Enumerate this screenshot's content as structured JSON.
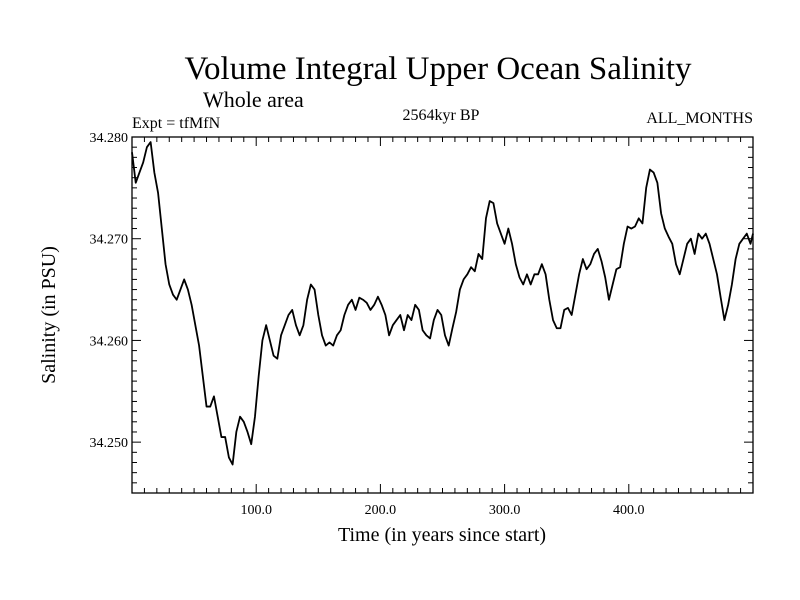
{
  "chart_data": {
    "type": "line",
    "title": "Volume Integral Upper Ocean Salinity",
    "subtitle": "Whole area",
    "expt_label": "Expt = tfMfN",
    "period_label": "2564kyr BP",
    "months_label": "ALL_MONTHS",
    "xlabel": "Time (in years since start)",
    "ylabel": "Salinity (in PSU)",
    "xlim": [
      0,
      500
    ],
    "ylim": [
      34.245,
      34.28
    ],
    "x_ticks": [
      {
        "value": 100,
        "label": "100.0"
      },
      {
        "value": 200,
        "label": "200.0"
      },
      {
        "value": 300,
        "label": "300.0"
      },
      {
        "value": 400,
        "label": "400.0"
      }
    ],
    "y_ticks": [
      {
        "value": 34.25,
        "label": "34.250"
      },
      {
        "value": 34.26,
        "label": "34.260"
      },
      {
        "value": 34.27,
        "label": "34.270"
      },
      {
        "value": 34.28,
        "label": "34.280"
      }
    ],
    "grid": false,
    "series": [
      {
        "name": "salinity",
        "x": [
          0,
          3,
          6,
          9,
          12,
          15,
          18,
          21,
          24,
          27,
          30,
          33,
          36,
          39,
          42,
          45,
          48,
          51,
          54,
          57,
          60,
          63,
          66,
          69,
          72,
          75,
          78,
          81,
          84,
          87,
          90,
          93,
          96,
          99,
          102,
          105,
          108,
          111,
          114,
          117,
          120,
          123,
          126,
          129,
          132,
          135,
          138,
          141,
          144,
          147,
          150,
          153,
          156,
          159,
          162,
          165,
          168,
          171,
          174,
          177,
          180,
          183,
          186,
          189,
          192,
          195,
          198,
          201,
          204,
          207,
          210,
          213,
          216,
          219,
          222,
          225,
          228,
          231,
          234,
          237,
          240,
          243,
          246,
          249,
          252,
          255,
          258,
          261,
          264,
          267,
          270,
          273,
          276,
          279,
          282,
          285,
          288,
          291,
          294,
          297,
          300,
          303,
          306,
          309,
          312,
          315,
          318,
          321,
          324,
          327,
          330,
          333,
          336,
          339,
          342,
          345,
          348,
          351,
          354,
          357,
          360,
          363,
          366,
          369,
          372,
          375,
          378,
          381,
          384,
          387,
          390,
          393,
          396,
          399,
          402,
          405,
          408,
          411,
          414,
          417,
          420,
          423,
          426,
          429,
          432,
          435,
          438,
          441,
          444,
          447,
          450,
          453,
          456,
          459,
          462,
          465,
          468,
          471,
          474,
          477,
          480,
          483,
          486,
          489,
          492,
          495,
          498,
          500
        ],
        "values": [
          34.2785,
          34.2755,
          34.2765,
          34.2775,
          34.279,
          34.2795,
          34.2765,
          34.2745,
          34.271,
          34.2675,
          34.2655,
          34.2645,
          34.264,
          34.265,
          34.266,
          34.265,
          34.2635,
          34.2615,
          34.2595,
          34.2565,
          34.2535,
          34.2535,
          34.2545,
          34.2525,
          34.2505,
          34.2505,
          34.2485,
          34.2478,
          34.251,
          34.2525,
          34.252,
          34.251,
          34.2498,
          34.2525,
          34.2565,
          34.26,
          34.2615,
          34.26,
          34.2585,
          34.2582,
          34.2605,
          34.2615,
          34.2625,
          34.263,
          34.2615,
          34.2605,
          34.2615,
          34.264,
          34.2655,
          34.265,
          34.2625,
          34.2605,
          34.2595,
          34.2598,
          34.2595,
          34.2605,
          34.261,
          34.2625,
          34.2635,
          34.264,
          34.263,
          34.2642,
          34.264,
          34.2637,
          34.263,
          34.2635,
          34.2643,
          34.2635,
          34.2625,
          34.2605,
          34.2615,
          34.262,
          34.2625,
          34.261,
          34.2625,
          34.262,
          34.2635,
          34.263,
          34.261,
          34.2605,
          34.2602,
          34.262,
          34.263,
          34.2625,
          34.2605,
          34.2595,
          34.2612,
          34.2628,
          34.265,
          34.266,
          34.2665,
          34.2672,
          34.2668,
          34.2685,
          34.268,
          34.272,
          34.2737,
          34.2735,
          34.2715,
          34.2705,
          34.2695,
          34.271,
          34.2695,
          34.2675,
          34.2662,
          34.2655,
          34.2665,
          34.2655,
          34.2665,
          34.2665,
          34.2675,
          34.2665,
          34.264,
          34.262,
          34.2612,
          34.2612,
          34.263,
          34.2632,
          34.2625,
          34.2645,
          34.2665,
          34.268,
          34.267,
          34.2675,
          34.2685,
          34.269,
          34.2678,
          34.2662,
          34.264,
          34.2655,
          34.267,
          34.2672,
          34.2695,
          34.2712,
          34.271,
          34.2712,
          34.272,
          34.2715,
          34.275,
          34.2768,
          34.2765,
          34.2755,
          34.2725,
          34.271,
          34.2702,
          34.2695,
          34.2675,
          34.2665,
          34.268,
          34.2695,
          34.27,
          34.2685,
          34.2705,
          34.27,
          34.2705,
          34.2695,
          34.268,
          34.2665,
          34.2642,
          34.262,
          34.2635,
          34.2655,
          34.268,
          34.2695,
          34.27,
          34.2705,
          34.2695,
          34.2705
        ]
      }
    ]
  }
}
